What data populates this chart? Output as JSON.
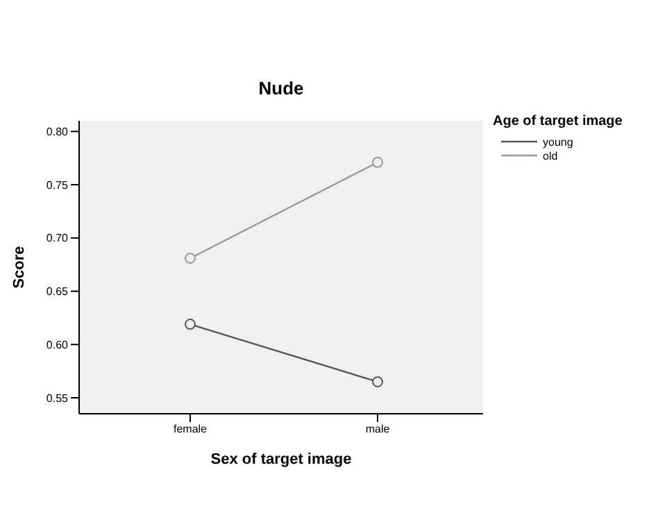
{
  "chart_data": {
    "type": "line",
    "title": "Nude",
    "xlabel": "Sex of target image",
    "ylabel": "Score",
    "legend_title": "Age of target image",
    "categories": [
      "female",
      "male"
    ],
    "series": [
      {
        "name": "young",
        "color": "#555555",
        "values": [
          0.619,
          0.565
        ]
      },
      {
        "name": "old",
        "color": "#999999",
        "values": [
          0.681,
          0.771
        ]
      }
    ],
    "ylim": [
      0.535,
      0.81
    ],
    "yticks": [
      {
        "value": 0.55,
        "label": "0.55"
      },
      {
        "value": 0.6,
        "label": "0.60"
      },
      {
        "value": 0.65,
        "label": "0.65"
      },
      {
        "value": 0.7,
        "label": "0.70"
      },
      {
        "value": 0.75,
        "label": "0.75"
      },
      {
        "value": 0.8,
        "label": "0.80"
      }
    ],
    "marker": "circle",
    "legend": "right",
    "grid": false
  }
}
